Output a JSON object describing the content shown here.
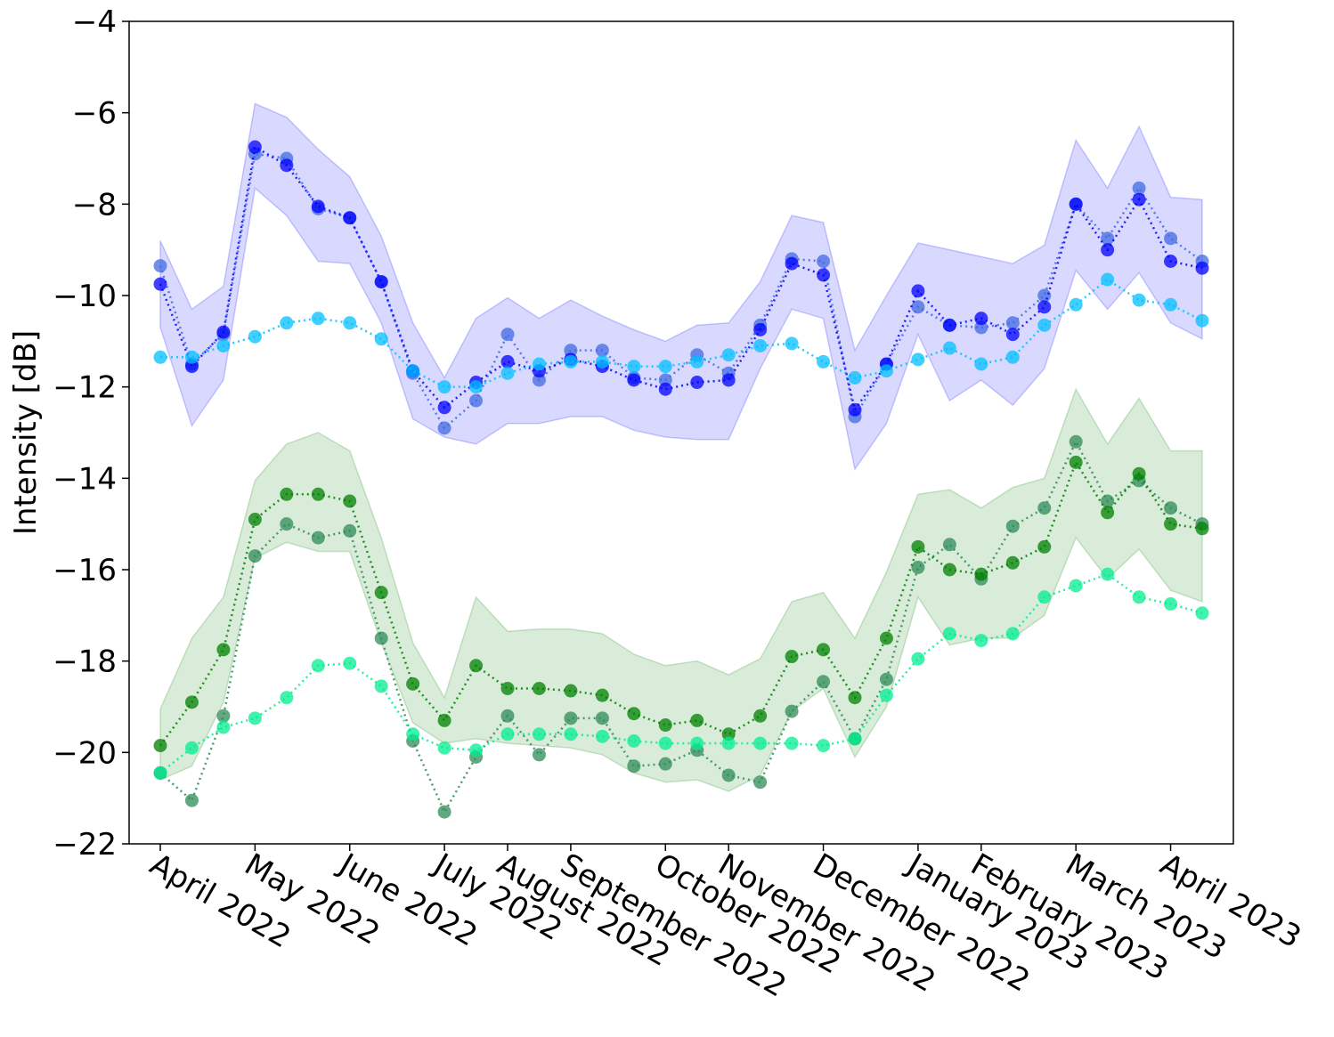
{
  "chart_data": {
    "type": "line",
    "ylabel": "Intensity [dB]",
    "categories": [
      "April 2022",
      null,
      null,
      "May 2022",
      null,
      null,
      "June 2022",
      null,
      null,
      "July 2022",
      null,
      "August 2022",
      null,
      "September 2022",
      null,
      null,
      "October 2022",
      null,
      "November 2022",
      null,
      null,
      "December 2022",
      null,
      null,
      "January 2023",
      null,
      "February 2023",
      null,
      null,
      "March 2023",
      null,
      null,
      "April 2023",
      null
    ],
    "ylim": [
      -22,
      -4
    ],
    "yticks": [
      {
        "value": -22,
        "label": "−22"
      },
      {
        "value": -20,
        "label": "−20"
      },
      {
        "value": -18,
        "label": "−18"
      },
      {
        "value": -16,
        "label": "−16"
      },
      {
        "value": -14,
        "label": "−14"
      },
      {
        "value": -12,
        "label": "−12"
      },
      {
        "value": -10,
        "label": "−10"
      },
      {
        "value": -8,
        "label": "−8"
      },
      {
        "value": -6,
        "label": "−6"
      },
      {
        "value": -4,
        "label": "−4"
      }
    ],
    "bands": [
      {
        "color": "#0000ff",
        "alpha": 0.15,
        "upper": [
          -8.8,
          -10.3,
          -9.8,
          -5.8,
          -6.1,
          -6.8,
          -7.4,
          -8.7,
          -10.6,
          -11.8,
          -10.5,
          -10.05,
          -10.5,
          -10.1,
          -10.45,
          -10.75,
          -11.0,
          -10.65,
          -10.6,
          -9.7,
          -8.25,
          -8.4,
          -11.2,
          -10.0,
          -8.85,
          -9.0,
          -9.15,
          -9.3,
          -8.9,
          -6.6,
          -7.65,
          -6.3,
          -7.85,
          -7.9
        ],
        "lower": [
          -10.7,
          -12.85,
          -11.85,
          -7.65,
          -8.25,
          -9.25,
          -9.3,
          -10.6,
          -12.7,
          -13.1,
          -13.25,
          -12.8,
          -12.8,
          -12.65,
          -12.65,
          -12.95,
          -13.1,
          -13.15,
          -13.15,
          -11.6,
          -10.3,
          -10.5,
          -13.8,
          -12.8,
          -10.85,
          -12.3,
          -11.85,
          -12.4,
          -11.6,
          -9.45,
          -10.3,
          -9.5,
          -10.6,
          -10.95
        ]
      },
      {
        "color": "#008000",
        "alpha": 0.15,
        "upper": [
          -19.05,
          -17.5,
          -16.6,
          -14.05,
          -13.25,
          -13.0,
          -13.4,
          -15.3,
          -17.6,
          -18.8,
          -16.6,
          -17.35,
          -17.3,
          -17.3,
          -17.4,
          -17.85,
          -18.1,
          -18.0,
          -18.3,
          -17.95,
          -16.7,
          -16.5,
          -17.5,
          -16.05,
          -14.35,
          -14.25,
          -14.65,
          -14.2,
          -14.0,
          -12.05,
          -13.25,
          -12.25,
          -13.4,
          -13.4
        ],
        "lower": [
          -20.6,
          -20.3,
          -18.9,
          -15.75,
          -15.4,
          -15.6,
          -15.6,
          -17.6,
          -19.35,
          -19.8,
          -19.7,
          -19.8,
          -19.85,
          -19.9,
          -20.05,
          -20.45,
          -20.65,
          -20.6,
          -20.85,
          -20.5,
          -19.1,
          -18.6,
          -20.1,
          -19.0,
          -16.6,
          -17.65,
          -17.5,
          -17.5,
          -17.0,
          -15.3,
          -16.2,
          -15.55,
          -16.45,
          -16.7
        ]
      }
    ],
    "series": [
      {
        "color": "#4169e1",
        "values": [
          -9.35,
          -11.5,
          -10.85,
          -6.9,
          -7.0,
          -8.1,
          -8.3,
          -9.7,
          -11.7,
          -12.9,
          -12.3,
          -10.85,
          -11.85,
          -11.2,
          -11.2,
          -11.8,
          -11.85,
          -11.3,
          -11.7,
          -10.65,
          -9.2,
          -9.25,
          -12.65,
          -11.5,
          -10.25,
          -10.65,
          -10.7,
          -10.6,
          -10.0,
          -8.0,
          -8.75,
          -7.65,
          -8.75,
          -9.25
        ]
      },
      {
        "color": "#0000ff",
        "values": [
          -9.75,
          -11.55,
          -10.8,
          -6.75,
          -7.15,
          -8.05,
          -8.3,
          -9.7,
          -11.65,
          -12.45,
          -11.9,
          -11.45,
          -11.65,
          -11.4,
          -11.55,
          -11.85,
          -12.05,
          -11.9,
          -11.85,
          -10.75,
          -9.3,
          -9.55,
          -12.5,
          -11.5,
          -9.9,
          -10.65,
          -10.5,
          -10.85,
          -10.25,
          -8.0,
          -9.0,
          -7.9,
          -9.25,
          -9.4
        ]
      },
      {
        "color": "#00bfff",
        "values": [
          -11.35,
          -11.35,
          -11.1,
          -10.9,
          -10.6,
          -10.5,
          -10.6,
          -10.95,
          -11.65,
          -12.0,
          -12.0,
          -11.7,
          -11.5,
          -11.45,
          -11.45,
          -11.55,
          -11.55,
          -11.45,
          -11.3,
          -11.1,
          -11.05,
          -11.45,
          -11.8,
          -11.65,
          -11.4,
          -11.15,
          -11.5,
          -11.35,
          -10.65,
          -10.2,
          -9.65,
          -10.1,
          -10.2,
          -10.55
        ]
      },
      {
        "color": "#2e8b57",
        "values": [
          -20.45,
          -21.05,
          -19.2,
          -15.7,
          -15.0,
          -15.3,
          -15.15,
          -17.5,
          -19.75,
          -21.3,
          -20.1,
          -19.2,
          -20.05,
          -19.25,
          -19.25,
          -20.3,
          -20.25,
          -19.95,
          -20.5,
          -20.65,
          -19.1,
          -18.45,
          -19.7,
          -18.4,
          -15.95,
          -15.45,
          -16.2,
          -15.05,
          -14.65,
          -13.2,
          -14.5,
          -14.05,
          -14.65,
          -15.0
        ]
      },
      {
        "color": "#008000",
        "values": [
          -19.85,
          -18.9,
          -17.75,
          -14.9,
          -14.35,
          -14.35,
          -14.5,
          -16.5,
          -18.5,
          -19.3,
          -18.1,
          -18.6,
          -18.6,
          -18.65,
          -18.75,
          -19.15,
          -19.4,
          -19.3,
          -19.6,
          -19.2,
          -17.9,
          -17.75,
          -18.8,
          -17.5,
          -15.5,
          -16.0,
          -16.1,
          -15.85,
          -15.5,
          -13.65,
          -14.75,
          -13.9,
          -15.0,
          -15.1
        ]
      },
      {
        "color": "#00ee90",
        "values": [
          -20.45,
          -19.9,
          -19.45,
          -19.25,
          -18.8,
          -18.1,
          -18.05,
          -18.55,
          -19.6,
          -19.9,
          -19.95,
          -19.6,
          -19.6,
          -19.6,
          -19.65,
          -19.75,
          -19.8,
          -19.8,
          -19.8,
          -19.8,
          -19.8,
          -19.85,
          -19.7,
          -18.75,
          -17.95,
          -17.4,
          -17.55,
          -17.4,
          -16.6,
          -16.35,
          -16.1,
          -16.6,
          -16.75,
          -16.95
        ]
      }
    ]
  }
}
